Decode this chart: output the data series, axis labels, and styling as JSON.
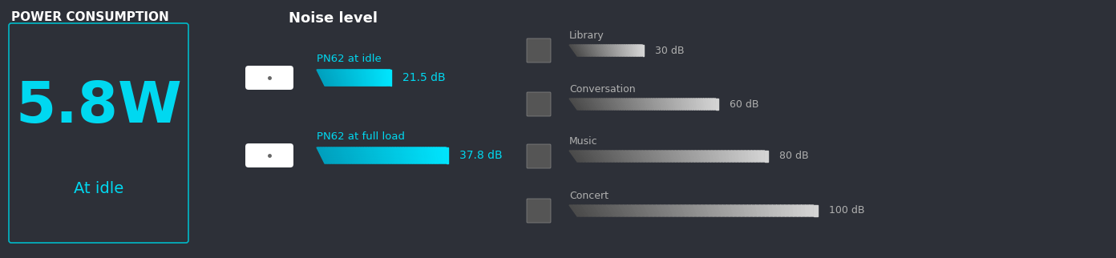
{
  "bg_color": "#2d3038",
  "title_power": "POWER CONSUMPTION",
  "power_value": "5.8W",
  "power_sub": "At idle",
  "cyan_color": "#00d8f0",
  "white_color": "#ffffff",
  "gray_color": "#b0b0b0",
  "noise_title": "Noise level",
  "noise_bars": [
    {
      "label": "PN62 at idle",
      "value": 21.5,
      "display": "21.5 dB",
      "max_db": 45
    },
    {
      "label": "PN62 at full load",
      "value": 37.8,
      "display": "37.8 dB",
      "max_db": 45
    }
  ],
  "ref_bars": [
    {
      "label": "Library",
      "value": 30,
      "display": "30 dB",
      "max_db": 100
    },
    {
      "label": "Conversation",
      "value": 60,
      "display": "60 dB",
      "max_db": 100
    },
    {
      "label": "Music",
      "value": 80,
      "display": "80 dB",
      "max_db": 100
    },
    {
      "label": "Concert",
      "value": 100,
      "display": "100 dB",
      "max_db": 100
    }
  ],
  "box_border_color": "#00b8c8",
  "power_title_fontsize": 11,
  "power_fontsize": 52,
  "power_sub_fontsize": 14
}
